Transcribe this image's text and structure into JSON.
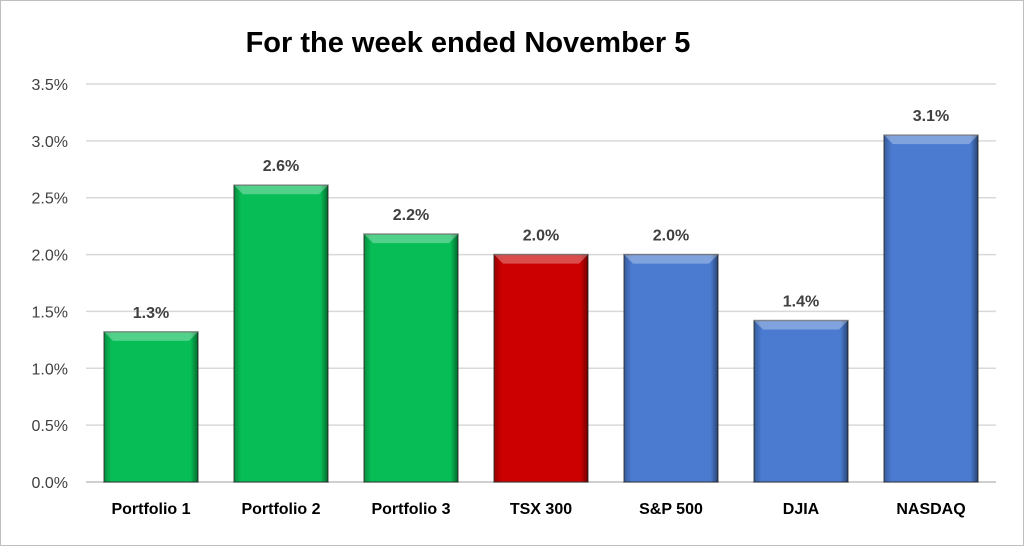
{
  "chart_data": {
    "type": "bar",
    "title": "For the week ended November 5",
    "xlabel": "",
    "ylabel": "",
    "ylim": [
      0,
      3.5
    ],
    "yticks": [
      "0.0%",
      "0.5%",
      "1.0%",
      "1.5%",
      "2.0%",
      "2.5%",
      "3.0%",
      "3.5%"
    ],
    "grid": true,
    "legend": "none",
    "categories": [
      "Portfolio 1",
      "Portfolio 2",
      "Portfolio 3",
      "TSX 300",
      "S&P 500",
      "DJIA",
      "NASDAQ"
    ],
    "values": [
      1.32,
      2.61,
      2.18,
      2.0,
      2.0,
      1.42,
      3.05
    ],
    "data_labels": [
      "1.3%",
      "2.6%",
      "2.2%",
      "2.0%",
      "2.0%",
      "1.4%",
      "3.1%"
    ],
    "colors": [
      "#07BE56",
      "#07BE56",
      "#07BE56",
      "#CC0000",
      "#4A7BD0",
      "#4A7BD0",
      "#4A7BD0"
    ]
  }
}
